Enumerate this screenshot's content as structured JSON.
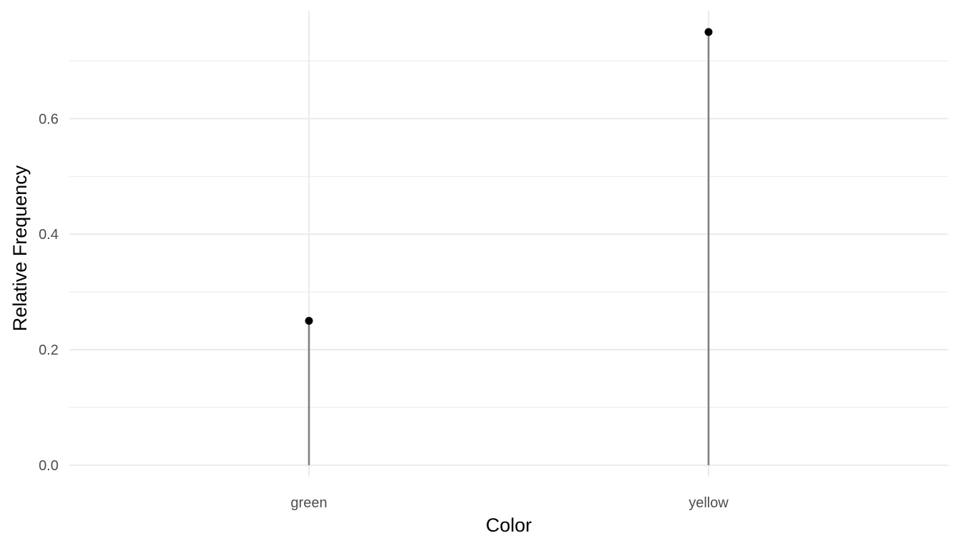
{
  "chart_data": {
    "type": "lollipop",
    "categories": [
      "green",
      "yellow"
    ],
    "values": [
      0.25,
      0.75
    ],
    "title": "",
    "xlabel": "Color",
    "ylabel": "Relative Frequency",
    "ylim": [
      0,
      0.75
    ],
    "yticks": [
      "0.0",
      "0.2",
      "0.4",
      "0.6"
    ],
    "grid": true,
    "legend": "none",
    "colors": {
      "stem": "#808080",
      "point": "#000000",
      "grid": "#ebebeb"
    }
  }
}
